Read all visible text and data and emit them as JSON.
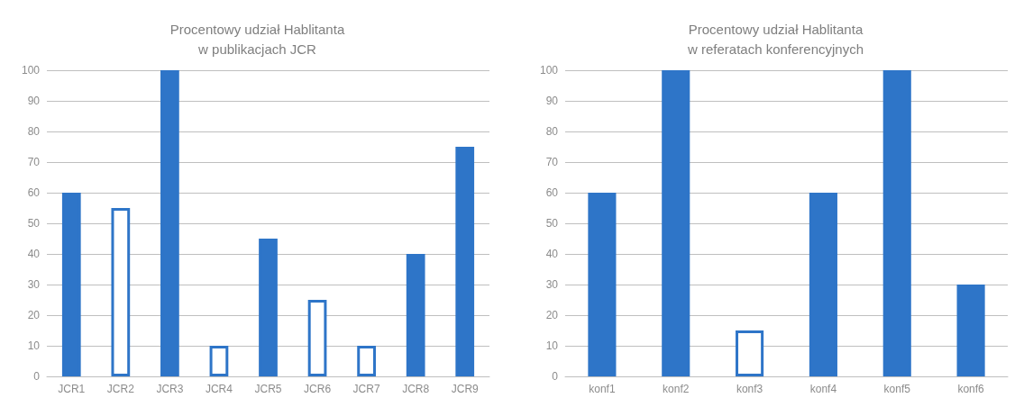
{
  "chart_data": [
    {
      "type": "bar",
      "title": "Procentowy udział Hablitanta\nw publikacjach JCR",
      "categories": [
        "JCR1",
        "JCR2",
        "JCR3",
        "JCR4",
        "JCR5",
        "JCR6",
        "JCR7",
        "JCR8",
        "JCR9"
      ],
      "values": [
        60,
        55,
        100,
        10,
        45,
        25,
        10,
        40,
        75
      ],
      "color": "#2e75c8",
      "colors": [
        "#2e75c8",
        "#ffffff",
        "#2e75c8",
        "#ffffff",
        "#2e75c8",
        "#ffffff",
        "#ffffff",
        "#2e75c8",
        "#2e75c8"
      ],
      "ylim": [
        0,
        100
      ],
      "yticks": [
        0,
        10,
        20,
        30,
        40,
        50,
        60,
        70,
        80,
        90,
        100
      ],
      "grid": "y"
    },
    {
      "type": "bar",
      "title": "Procentowy udział Hablitanta\nw referatach konferencyjnych",
      "categories": [
        "konf1",
        "konf2",
        "konf3",
        "konf4",
        "konf5",
        "konf6"
      ],
      "values": [
        60,
        100,
        15,
        60,
        100,
        30
      ],
      "color": "#2e75c8",
      "colors": [
        "#2e75c8",
        "#2e75c8",
        "#ffffff",
        "#2e75c8",
        "#2e75c8",
        "#2e75c8"
      ],
      "ylim": [
        0,
        100
      ],
      "yticks": [
        0,
        10,
        20,
        30,
        40,
        50,
        60,
        70,
        80,
        90,
        100
      ],
      "grid": "y"
    }
  ]
}
